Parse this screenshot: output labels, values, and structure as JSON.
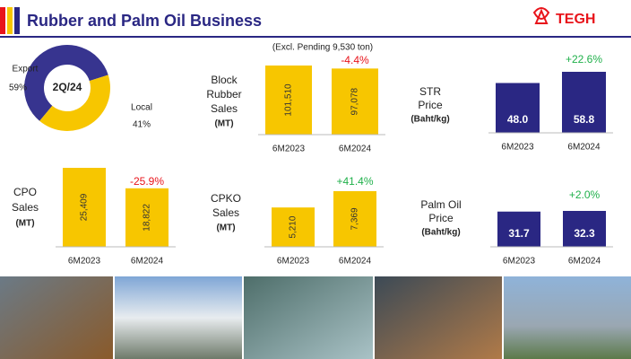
{
  "header": {
    "title": "Rubber and Palm Oil Business",
    "logo": "TEGH"
  },
  "chart_data": [
    {
      "type": "donut",
      "center_label": "2Q/24",
      "categories": [
        "Export",
        "Local"
      ],
      "values": [
        59,
        41
      ],
      "value_labels": [
        "59%",
        "41%"
      ],
      "colors": [
        "#37348f",
        "#f7c600"
      ]
    },
    {
      "type": "bar",
      "title": [
        "Block",
        "Rubber",
        "Sales"
      ],
      "unit": "(MT)",
      "subtitle": "(Excl. Pending 9,530 ton)",
      "categories": [
        "6M2023",
        "6M2024"
      ],
      "values": [
        101510,
        97078
      ],
      "value_labels": [
        "101,510",
        "97,078"
      ],
      "color": "#f7c600",
      "annotation": "-4.4%",
      "annotation_color": "#e8141b"
    },
    {
      "type": "bar",
      "title": [
        "STR",
        "Price"
      ],
      "unit": "(Baht/kg)",
      "categories": [
        "6M2023",
        "6M2024"
      ],
      "values": [
        48,
        58.8
      ],
      "value_labels": [
        "48.0",
        "58.8"
      ],
      "color": "#2a2783",
      "annotation": "+22.6%",
      "annotation_color": "#1fb04a"
    },
    {
      "type": "bar",
      "title": [
        "CPO",
        "Sales"
      ],
      "unit": "(MT)",
      "categories": [
        "6M2023",
        "6M2024"
      ],
      "values": [
        25409,
        18822
      ],
      "value_labels": [
        "25,409",
        "18,822"
      ],
      "color": "#f7c600",
      "annotation": "-25.9%",
      "annotation_color": "#e8141b"
    },
    {
      "type": "bar",
      "title": [
        "CPKO",
        "Sales"
      ],
      "unit": "(MT)",
      "categories": [
        "6M2023",
        "6M2024"
      ],
      "values": [
        5210,
        7369
      ],
      "value_labels": [
        "5,210",
        "7,369"
      ],
      "color": "#f7c600",
      "annotation": "+41.4%",
      "annotation_color": "#1fb04a"
    },
    {
      "type": "bar",
      "title": [
        "Palm Oil",
        "Price"
      ],
      "unit": "(Baht/kg)",
      "categories": [
        "6M2023",
        "6M2024"
      ],
      "values": [
        31.7,
        32.3
      ],
      "color": "#2a2783",
      "annotation": "+2.0%",
      "annotation_color": "#1fb04a"
    }
  ]
}
